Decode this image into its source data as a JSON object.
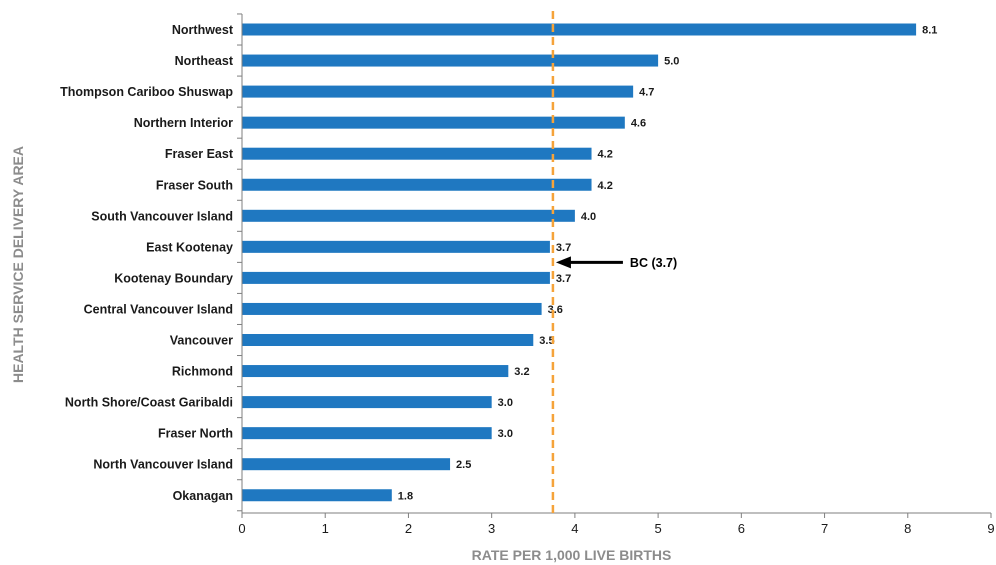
{
  "chart_data": {
    "type": "bar",
    "orientation": "horizontal",
    "categories": [
      "Northwest",
      "Northeast",
      "Thompson Cariboo Shuswap",
      "Northern Interior",
      "Fraser East",
      "Fraser South",
      "South Vancouver Island",
      "East Kootenay",
      "Kootenay Boundary",
      "Central Vancouver Island",
      "Vancouver",
      "Richmond",
      "North Shore/Coast Garibaldi",
      "Fraser North",
      "North Vancouver Island",
      "Okanagan"
    ],
    "values": [
      8.1,
      5.0,
      4.7,
      4.6,
      4.2,
      4.2,
      4.0,
      3.7,
      3.7,
      3.6,
      3.5,
      3.2,
      3.0,
      3.0,
      2.5,
      1.8
    ],
    "value_labels": [
      "8.1",
      "5.0",
      "4.7",
      "4.6",
      "4.2",
      "4.2",
      "4.0",
      "3.7",
      "3.7",
      "3.6",
      "3.5",
      "3.2",
      "3.0",
      "3.0",
      "2.5",
      "1.8"
    ],
    "xlabel": "RATE PER 1,000 LIVE BIRTHS",
    "ylabel": "HEALTH SERVICE DELIVERY AREA",
    "xlim": [
      0,
      9
    ],
    "xticks": [
      "0",
      "1",
      "2",
      "3",
      "4",
      "5",
      "6",
      "7",
      "8",
      "9"
    ],
    "grid": false,
    "reference_line": {
      "value": 3.7,
      "label": "BC (3.7)",
      "style": "dashed",
      "color": "#f5a33a"
    },
    "colors": {
      "bar": "#1f78c1",
      "axis": "#7f7f7f",
      "reference": "#f5a33a"
    }
  }
}
